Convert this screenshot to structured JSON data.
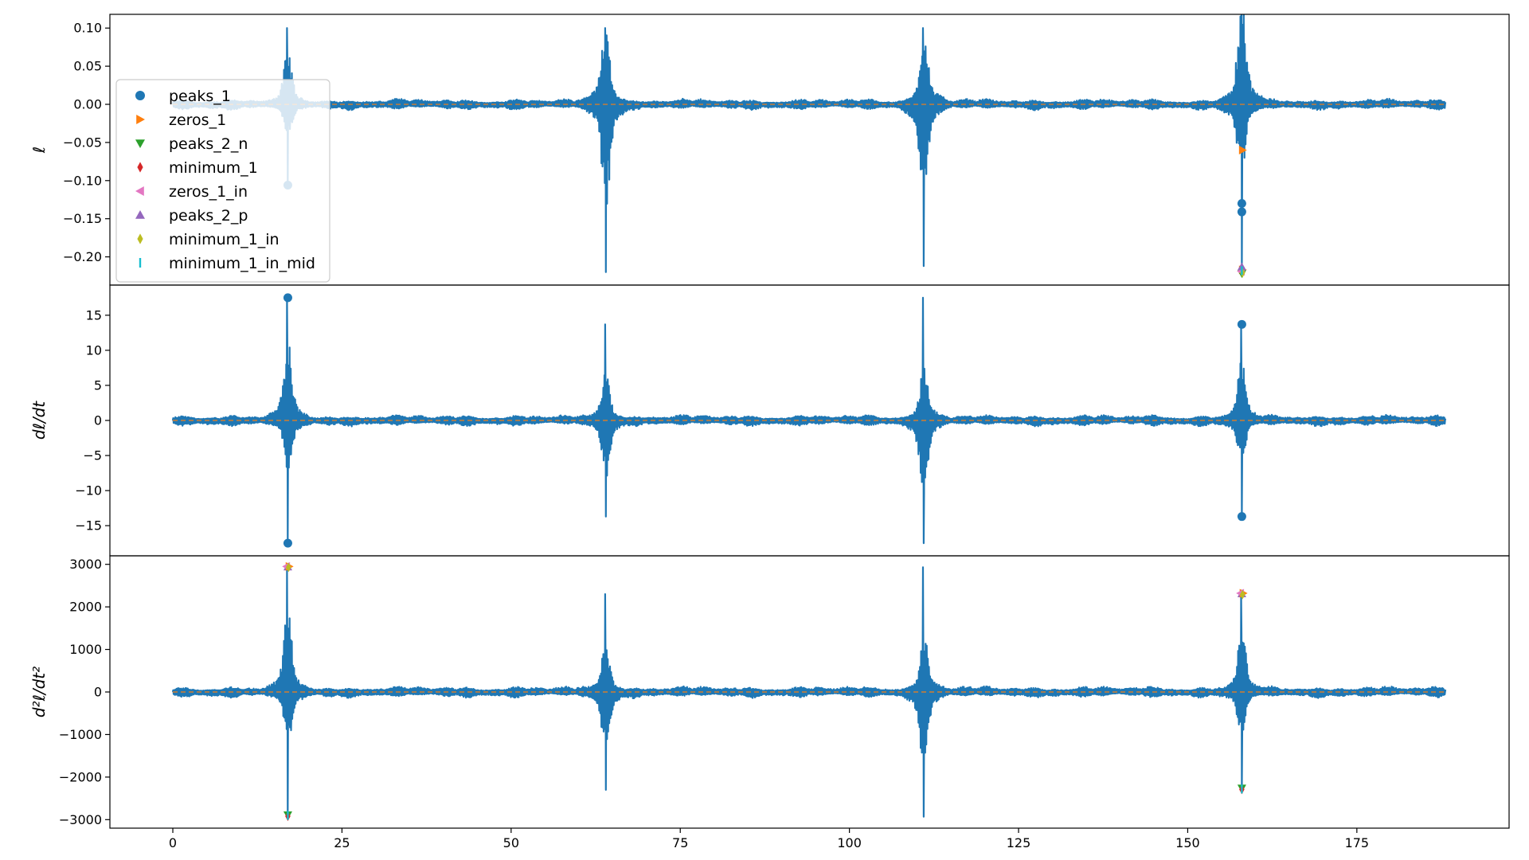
{
  "chart_data": [
    {
      "type": "line",
      "ylabel": "ℓ",
      "xlim": [
        -9.3,
        197.5
      ],
      "ylim": [
        -0.237,
        0.118
      ],
      "yticks": [
        0.1,
        0.05,
        0.0,
        -0.05,
        -0.1,
        -0.15,
        -0.2
      ],
      "ytick_labels": [
        "0.10",
        "0.05",
        "0.00",
        "−0.05",
        "−0.10",
        "−0.15",
        "−0.20"
      ],
      "signal": {
        "name": "signal",
        "color": "#1f77b4",
        "t_end": 188.1,
        "baseline_amplitude": 0.008,
        "bursts": [
          {
            "center": 17.0,
            "peak": 0.1,
            "trough": -0.107
          },
          {
            "center": 64.0,
            "peak": 0.1,
            "trough": -0.22
          },
          {
            "center": 111.0,
            "peak": 0.1,
            "trough": -0.212
          },
          {
            "center": 158.0,
            "peak": 0.1,
            "trough": -0.222
          }
        ]
      },
      "series": [
        {
          "name": "peaks_1",
          "marker": "circle",
          "color": "#1f77b4",
          "points": [
            [
              17.0,
              -0.106
            ],
            [
              158.0,
              -0.13
            ],
            [
              158.0,
              -0.141
            ]
          ]
        },
        {
          "name": "zeros_1",
          "marker": "triangle-right",
          "color": "#ff7f0e",
          "points": [
            [
              158.1,
              -0.217
            ],
            [
              158.1,
              -0.06
            ]
          ]
        },
        {
          "name": "peaks_2_n",
          "marker": "triangle-down",
          "color": "#2ca02c",
          "points": [
            [
              158.0,
              -0.222
            ]
          ]
        },
        {
          "name": "minimum_1",
          "marker": "thin-diamond",
          "color": "#d62728",
          "points": [
            [
              158.0,
              -0.215
            ]
          ]
        },
        {
          "name": "zeros_1_in",
          "marker": "triangle-left",
          "color": "#e377c2",
          "points": [
            [
              157.9,
              -0.219
            ]
          ]
        },
        {
          "name": "peaks_2_p",
          "marker": "triangle-up",
          "color": "#9467bd",
          "points": [
            [
              158.0,
              -0.213
            ]
          ]
        },
        {
          "name": "minimum_1_in",
          "marker": "thin-diamond",
          "color": "#bcbd22",
          "points": [
            [
              158.1,
              -0.221
            ]
          ]
        },
        {
          "name": "minimum_1_in_mid",
          "marker": "vline",
          "color": "#17becf",
          "points": [
            [
              158.0,
              -0.218
            ]
          ]
        }
      ],
      "legend": "top-left"
    },
    {
      "type": "line",
      "ylabel": "dℓ/dt",
      "xlim": [
        -9.3,
        197.5
      ],
      "ylim": [
        -19.3,
        19.3
      ],
      "yticks": [
        15,
        10,
        5,
        0,
        -5,
        -10,
        -15
      ],
      "ytick_labels": [
        "15",
        "10",
        "5",
        "0",
        "−5",
        "−10",
        "−15"
      ],
      "signal": {
        "name": "signal",
        "color": "#1f77b4",
        "t_end": 188.1,
        "baseline_amplitude": 0.9,
        "bursts": [
          {
            "center": 17.0,
            "peak": 17.5,
            "trough": -17.5
          },
          {
            "center": 64.0,
            "peak": 13.7,
            "trough": -13.7
          },
          {
            "center": 111.0,
            "peak": 17.5,
            "trough": -17.5
          },
          {
            "center": 158.0,
            "peak": 13.7,
            "trough": -13.7
          }
        ]
      },
      "series": [
        {
          "name": "peaks_1",
          "marker": "circle",
          "color": "#1f77b4",
          "points": [
            [
              17.0,
              17.5
            ],
            [
              17.0,
              -17.5
            ],
            [
              158.0,
              13.7
            ],
            [
              158.0,
              -13.7
            ]
          ]
        }
      ]
    },
    {
      "type": "line",
      "ylabel": "d²ℓ/dt²",
      "xlabel": "",
      "xlim": [
        -9.3,
        197.5
      ],
      "ylim": [
        -3200,
        3200
      ],
      "yticks": [
        3000,
        2000,
        1000,
        0,
        -1000,
        -2000,
        -3000
      ],
      "ytick_labels": [
        "3000",
        "2000",
        "1000",
        "0",
        "−1000",
        "−2000",
        "−3000"
      ],
      "xticks": [
        0,
        25,
        50,
        75,
        100,
        125,
        150,
        175
      ],
      "xtick_labels": [
        "0",
        "25",
        "50",
        "75",
        "100",
        "125",
        "150",
        "175"
      ],
      "signal": {
        "name": "signal",
        "color": "#1f77b4",
        "t_end": 188.1,
        "baseline_amplitude": 150,
        "bursts": [
          {
            "center": 17.0,
            "peak": 2950,
            "trough": -2950
          },
          {
            "center": 64.0,
            "peak": 2300,
            "trough": -2300
          },
          {
            "center": 111.0,
            "peak": 2930,
            "trough": -2930
          },
          {
            "center": 158.0,
            "peak": 2300,
            "trough": -2300
          }
        ]
      },
      "series": [
        {
          "name": "peaks_2_p",
          "marker": "triangle-up",
          "color": "#9467bd",
          "points": [
            [
              17.0,
              2940
            ],
            [
              158.0,
              2310
            ]
          ]
        },
        {
          "name": "zeros_1",
          "marker": "triangle-right",
          "color": "#ff7f0e",
          "points": [
            [
              17.2,
              2950
            ],
            [
              158.2,
              2320
            ]
          ]
        },
        {
          "name": "zeros_1_in",
          "marker": "triangle-left",
          "color": "#e377c2",
          "points": [
            [
              16.8,
              2950
            ],
            [
              157.8,
              2320
            ]
          ]
        },
        {
          "name": "minimum_1_in",
          "marker": "thin-diamond",
          "color": "#bcbd22",
          "points": [
            [
              17.1,
              2930
            ],
            [
              158.1,
              2290
            ]
          ]
        },
        {
          "name": "peaks_2_n",
          "marker": "triangle-down",
          "color": "#2ca02c",
          "points": [
            [
              17.0,
              -2890
            ],
            [
              158.0,
              -2260
            ]
          ]
        },
        {
          "name": "minimum_1",
          "marker": "thin-diamond",
          "color": "#d62728",
          "points": [
            [
              17.0,
              -2920
            ],
            [
              158.0,
              -2290
            ]
          ]
        },
        {
          "name": "minimum_1_in_mid",
          "marker": "vline",
          "color": "#17becf",
          "points": [
            [
              17.0,
              -2900
            ],
            [
              158.0,
              -2280
            ]
          ]
        }
      ]
    }
  ]
}
